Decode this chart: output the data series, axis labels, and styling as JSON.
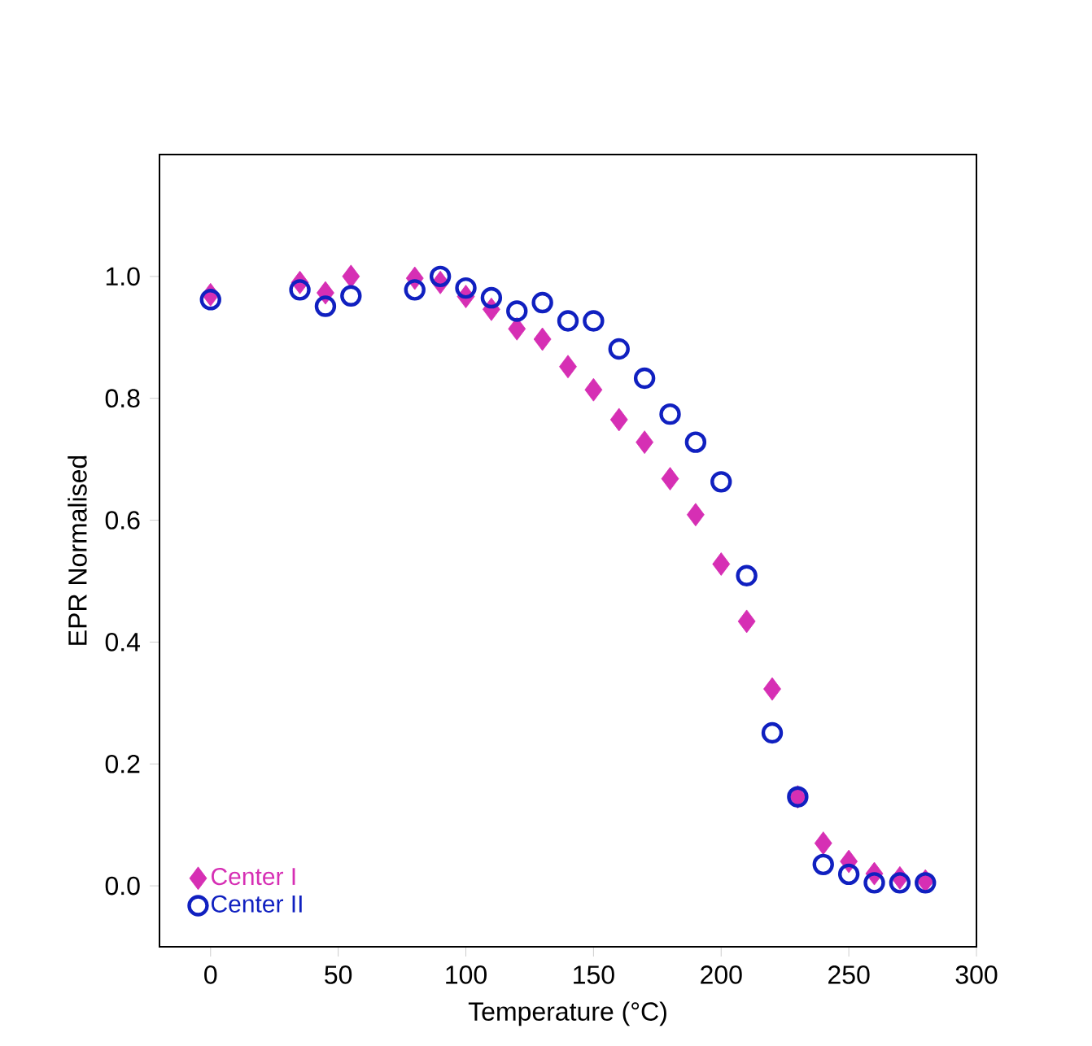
{
  "chart_data": {
    "type": "scatter",
    "xlabel": "Temperature (°C)",
    "ylabel": "EPR Normalised",
    "xlim": [
      -20,
      300
    ],
    "ylim": [
      -0.1,
      1.2
    ],
    "xticks": [
      0,
      50,
      100,
      150,
      200,
      250,
      300
    ],
    "yticks": [
      {
        "value": 0,
        "label": "0.0"
      },
      {
        "value": 0.2,
        "label": "0.2"
      },
      {
        "value": 0.4,
        "label": "0.4"
      },
      {
        "value": 0.6,
        "label": "0.6"
      },
      {
        "value": 0.8,
        "label": "0.8"
      },
      {
        "value": 1.0,
        "label": "1.0"
      }
    ],
    "grid": false,
    "legend": "bottom left",
    "series": [
      {
        "name": "Center I",
        "color": "#d62fb4",
        "marker": "diamond",
        "x": [
          0,
          35,
          45,
          55,
          80,
          90,
          100,
          110,
          120,
          130,
          140,
          150,
          160,
          170,
          180,
          190,
          200,
          210,
          220,
          230,
          240,
          250,
          260,
          270,
          280
        ],
        "values": [
          0.97,
          0.99,
          0.973,
          1.0,
          0.997,
          0.99,
          0.967,
          0.946,
          0.914,
          0.897,
          0.852,
          0.814,
          0.765,
          0.728,
          0.668,
          0.609,
          0.528,
          0.434,
          0.323,
          0.146,
          0.07,
          0.04,
          0.02,
          0.013,
          0.008
        ]
      },
      {
        "name": "Center II",
        "color": "#1020c0",
        "marker": "circle",
        "x": [
          0,
          35,
          45,
          55,
          80,
          90,
          100,
          110,
          120,
          130,
          140,
          150,
          160,
          170,
          180,
          190,
          200,
          210,
          220,
          230,
          240,
          250,
          260,
          270,
          280
        ],
        "values": [
          0.962,
          0.978,
          0.951,
          0.968,
          0.978,
          1.0,
          0.981,
          0.965,
          0.943,
          0.957,
          0.927,
          0.927,
          0.881,
          0.833,
          0.774,
          0.728,
          0.663,
          0.509,
          0.251,
          0.146,
          0.035,
          0.019,
          0.005,
          0.005,
          0.005
        ]
      }
    ]
  }
}
